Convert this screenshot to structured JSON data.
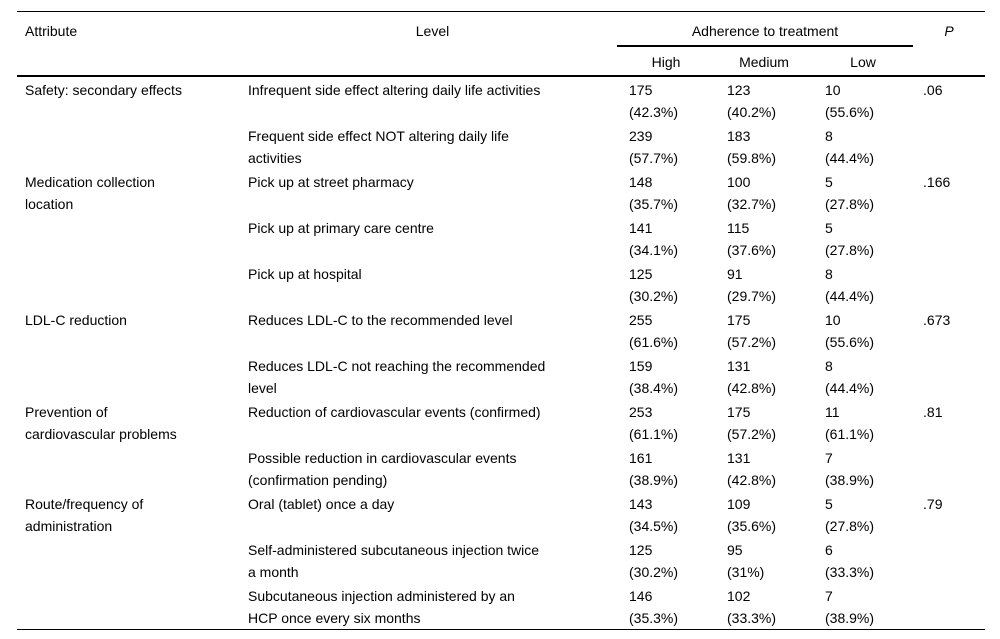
{
  "table": {
    "headers": {
      "attribute": "Attribute",
      "level": "Level",
      "adherence": "Adherence to treatment",
      "high": "High",
      "medium": "Medium",
      "low": "Low",
      "p": "P"
    },
    "groups": [
      {
        "attribute": "Safety: secondary effects",
        "p": ".06",
        "rows": [
          {
            "level": "Infrequent side effect altering daily life activities",
            "high": "175\n(42.3%)",
            "medium": "123\n(40.2%)",
            "low": "10\n(55.6%)"
          },
          {
            "level": "Frequent side effect NOT altering daily life\nactivities",
            "high": "239\n(57.7%)",
            "medium": "183\n(59.8%)",
            "low": "8\n(44.4%)"
          }
        ]
      },
      {
        "attribute": "Medication collection\nlocation",
        "p": ".166",
        "rows": [
          {
            "level": "Pick up at street pharmacy",
            "high": "148\n(35.7%)",
            "medium": "100\n(32.7%)",
            "low": "5\n(27.8%)"
          },
          {
            "level": "Pick up at primary care centre",
            "high": "141\n(34.1%)",
            "medium": "115\n(37.6%)",
            "low": "5\n(27.8%)"
          },
          {
            "level": "Pick up at hospital",
            "high": "125\n(30.2%)",
            "medium": "91\n(29.7%)",
            "low": "8\n(44.4%)"
          }
        ]
      },
      {
        "attribute": "LDL-C reduction",
        "p": ".673",
        "rows": [
          {
            "level": "Reduces LDL-C to the recommended level",
            "high": "255\n(61.6%)",
            "medium": "175\n(57.2%)",
            "low": "10\n(55.6%)"
          },
          {
            "level": "Reduces LDL-C not reaching the recommended\nlevel",
            "high": "159\n(38.4%)",
            "medium": "131\n(42.8%)",
            "low": "8\n(44.4%)"
          }
        ]
      },
      {
        "attribute": "Prevention of\ncardiovascular problems",
        "p": ".81",
        "rows": [
          {
            "level": "Reduction of cardiovascular events (confirmed)",
            "high": "253\n(61.1%)",
            "medium": "175\n(57.2%)",
            "low": "11\n(61.1%)"
          },
          {
            "level": "Possible reduction in cardiovascular events\n(confirmation pending)",
            "high": "161\n(38.9%)",
            "medium": "131\n(42.8%)",
            "low": "7\n(38.9%)"
          }
        ]
      },
      {
        "attribute": "Route/frequency of\nadministration",
        "p": ".79",
        "rows": [
          {
            "level": "Oral (tablet) once a day",
            "high": "143\n(34.5%)",
            "medium": "109\n(35.6%)",
            "low": "5\n(27.8%)"
          },
          {
            "level": "Self-administered subcutaneous injection twice\na month",
            "high": "125\n(30.2%)",
            "medium": "95\n(31%)",
            "low": "6\n(33.3%)"
          },
          {
            "level": "Subcutaneous injection administered by an\nHCP once every six months",
            "high": "146\n(35.3%)",
            "medium": "102\n(33.3%)",
            "low": "7\n(38.9%)"
          }
        ]
      }
    ]
  }
}
